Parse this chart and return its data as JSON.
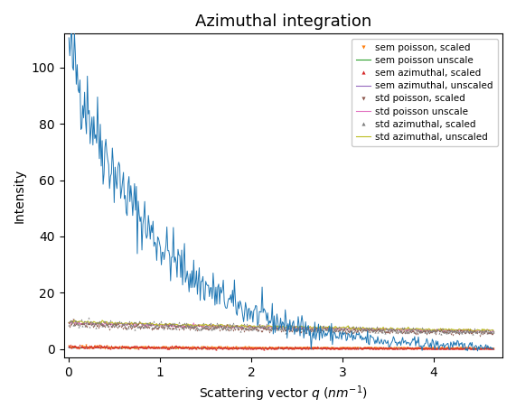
{
  "title": "Azimuthal integration",
  "xlabel": "Scattering vector $q$ $(nm^{-1})$",
  "ylabel": "Intensity",
  "xlim": [
    -0.05,
    4.75
  ],
  "ylim": [
    -3,
    112
  ],
  "q_max": 4.65,
  "main_curve": {
    "color": "#1f77b4",
    "I0": 107.0,
    "decay": 1.05,
    "noise_scale": 0.8
  },
  "legend_entries": [
    {
      "label": "sem poisson, scaled",
      "color": "#ff7f0e",
      "marker": "v",
      "linestyle": "none"
    },
    {
      "label": "sem poisson unscale",
      "color": "#2ca02c",
      "marker": null,
      "linestyle": "-"
    },
    {
      "label": "sem azimuthal, scaled",
      "color": "#d62728",
      "marker": "^",
      "linestyle": "none"
    },
    {
      "label": "sem azimuthal, unscaled",
      "color": "#9467bd",
      "marker": null,
      "linestyle": "-"
    },
    {
      "label": "std poisson, scaled",
      "color": "#8c564b",
      "marker": "v",
      "linestyle": "none"
    },
    {
      "label": "std poisson unscale",
      "color": "#e377c2",
      "marker": null,
      "linestyle": "-"
    },
    {
      "label": "std azimuthal, scaled",
      "color": "#7f7f7f",
      "marker": "^",
      "linestyle": "none"
    },
    {
      "label": "std azimuthal, unscaled",
      "color": "#bcbd22",
      "marker": null,
      "linestyle": "-"
    }
  ],
  "background_color": "#ffffff",
  "figsize": [
    5.71,
    4.62
  ],
  "dpi": 100
}
